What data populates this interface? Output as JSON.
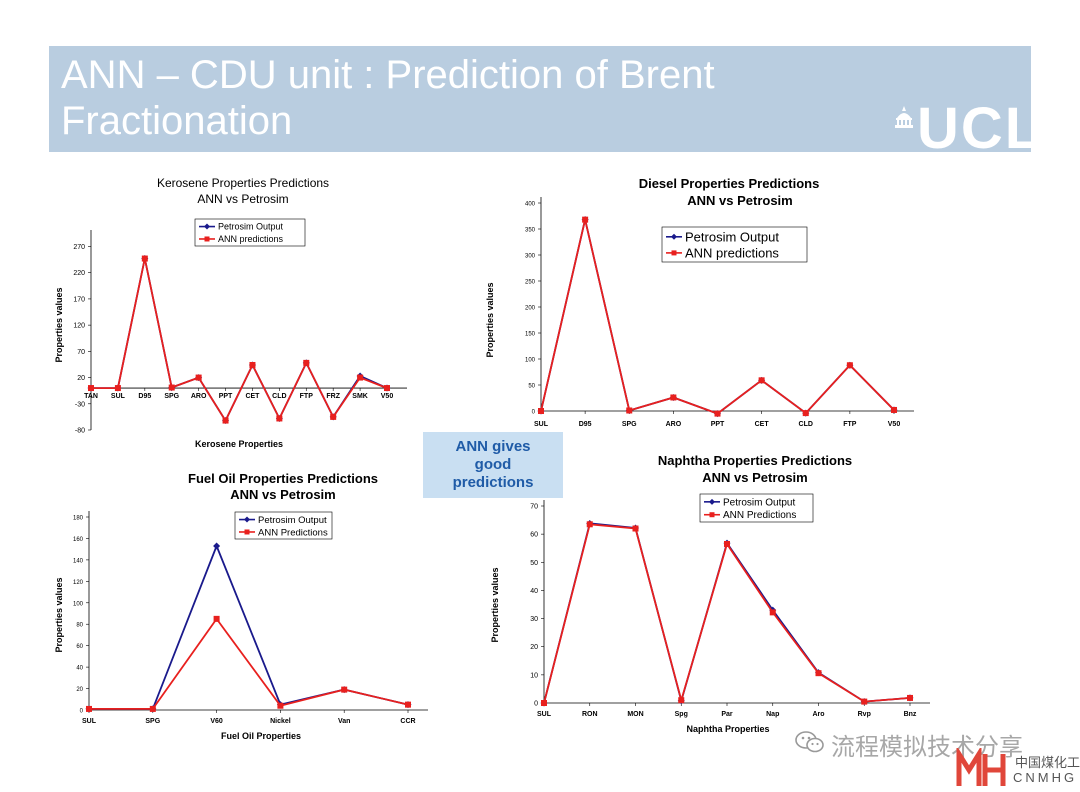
{
  "slide": {
    "title": "ANN – CDU unit : Prediction of Brent Fractionation",
    "logo": "UCL",
    "callout": "ANN gives good predictions",
    "watermark": "流程模拟技术分享",
    "brand_cn": "中国煤化工",
    "brand_en": "CNMHG",
    "colors": {
      "petrosim": "#1a1a8c",
      "ann": "#e8201e",
      "title_bar": "#b9cde0",
      "callout_bg": "#c9dff2",
      "callout_text": "#1f5ba7"
    }
  },
  "chart_data": [
    {
      "id": "kerosene",
      "type": "line",
      "title": "Kerosene Properties Predictions",
      "subtitle": "ANN vs Petrosim",
      "title_bold": false,
      "xlabel": "Kerosene Properties",
      "ylabel": "Properties values",
      "categories": [
        "TAN",
        "SUL",
        "D95",
        "SPG",
        "ARO",
        "PPT",
        "CET",
        "CLD",
        "FTP",
        "FRZ",
        "SMK",
        "V50"
      ],
      "yticks": [
        -80,
        -30,
        20,
        70,
        120,
        170,
        220,
        270
      ],
      "ylim": [
        -80,
        290
      ],
      "series": [
        {
          "name": "Petrosim Output",
          "marker": "diamond",
          "values": [
            0,
            0,
            247,
            1,
            20,
            -62,
            44,
            -58,
            48,
            -55,
            23,
            0
          ]
        },
        {
          "name": "ANN predictions",
          "marker": "square",
          "values": [
            0,
            0,
            247,
            1,
            20,
            -62,
            44,
            -58,
            48,
            -55,
            20,
            0
          ]
        }
      ]
    },
    {
      "id": "diesel",
      "type": "line",
      "title": "Diesel Properties Predictions",
      "subtitle": "ANN vs Petrosim",
      "title_bold": true,
      "xlabel": "",
      "ylabel": "Properties values",
      "categories": [
        "SUL",
        "D95",
        "SPG",
        "ARO",
        "PPT",
        "CET",
        "CLD",
        "FTP",
        "V50"
      ],
      "yticks": [
        0,
        50,
        100,
        150,
        200,
        250,
        300,
        350,
        400
      ],
      "ylim": [
        0,
        400
      ],
      "series": [
        {
          "name": "Petrosim Output",
          "marker": "diamond",
          "values": [
            0,
            368,
            1,
            26,
            -5,
            59,
            -4,
            88,
            2
          ]
        },
        {
          "name": "ANN predictions",
          "marker": "square",
          "values": [
            0,
            368,
            1,
            26,
            -5,
            59,
            -4,
            88,
            2
          ]
        }
      ]
    },
    {
      "id": "fueloil",
      "type": "line",
      "title": "Fuel Oil Properties Predictions",
      "subtitle": "ANN vs Petrosim",
      "title_bold": true,
      "xlabel": "Fuel Oil Properties",
      "ylabel": "Properties values",
      "categories": [
        "SUL",
        "SPG",
        "V60",
        "Nickel",
        "Van",
        "CCR"
      ],
      "yticks": [
        0,
        20,
        40,
        60,
        80,
        100,
        120,
        140,
        160,
        180
      ],
      "ylim": [
        0,
        180
      ],
      "series": [
        {
          "name": "Petrosim Output",
          "marker": "diamond",
          "values": [
            1,
            1,
            153,
            5,
            19,
            5
          ]
        },
        {
          "name": "ANN Predictions",
          "marker": "square",
          "values": [
            1,
            1,
            85,
            4,
            19,
            5
          ]
        }
      ]
    },
    {
      "id": "naphtha",
      "type": "line",
      "title": "Naphtha Properties Predictions",
      "subtitle": "ANN vs Petrosim",
      "title_bold": true,
      "xlabel": "Naphtha Properties",
      "ylabel": "Properties values",
      "categories": [
        "SUL",
        "RON",
        "MON",
        "Spg",
        "Par",
        "Nap",
        "Aro",
        "Rvp",
        "Bnz"
      ],
      "yticks": [
        0,
        10,
        20,
        30,
        40,
        50,
        60,
        70
      ],
      "ylim": [
        0,
        70
      ],
      "series": [
        {
          "name": "Petrosim Output",
          "marker": "diamond",
          "values": [
            0,
            63.8,
            62.2,
            0.8,
            56.8,
            33,
            10.8,
            0.5,
            1.8
          ]
        },
        {
          "name": "ANN Predictions",
          "marker": "square",
          "values": [
            0,
            63.5,
            62,
            1,
            56.5,
            32.2,
            10.6,
            0.5,
            1.8
          ]
        }
      ]
    }
  ]
}
